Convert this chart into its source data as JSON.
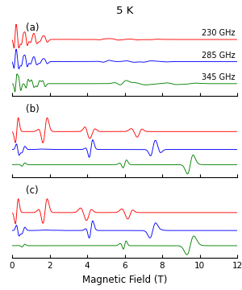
{
  "title": "5 K",
  "xlabel": "Magnetic Field (T)",
  "xlim": [
    0,
    12
  ],
  "panels": [
    "(a)",
    "(b)",
    "(c)"
  ],
  "colors": [
    "red",
    "blue",
    "green"
  ],
  "labels": [
    "230 GHz",
    "285 GHz",
    "345 GHz"
  ],
  "offsets_a": [
    1.6,
    0.8,
    0.0
  ],
  "offsets_b": [
    1.2,
    0.55,
    0.0
  ],
  "offsets_c": [
    1.2,
    0.55,
    0.0
  ],
  "scale_a": [
    0.55,
    0.45,
    0.35
  ],
  "scale_b": [
    0.5,
    0.35,
    0.35
  ],
  "scale_c": [
    0.5,
    0.35,
    0.35
  ]
}
